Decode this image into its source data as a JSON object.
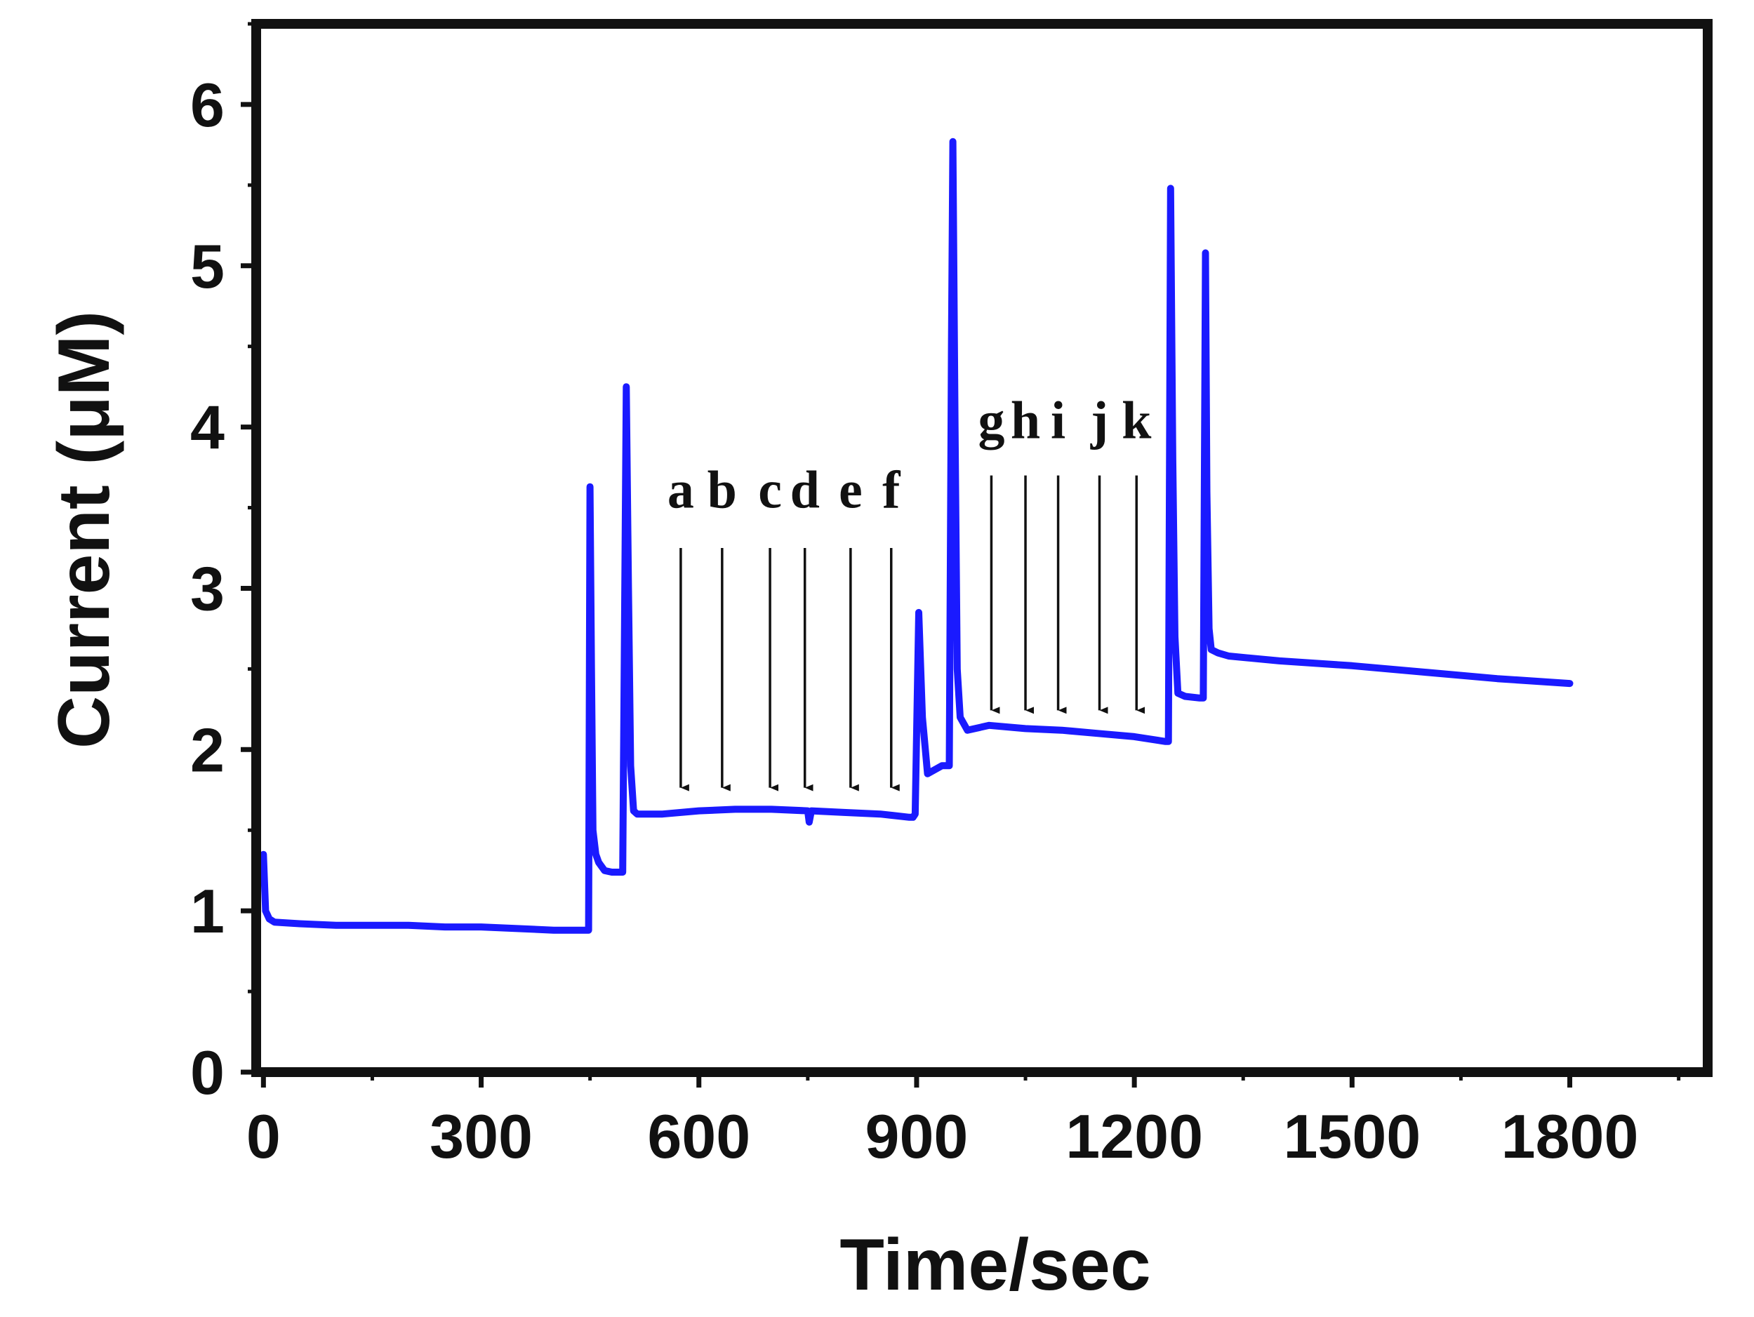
{
  "chart_data": {
    "type": "line",
    "title": "",
    "xlabel": "Time/sec",
    "ylabel": "Current (μM)",
    "xlim": [
      -10,
      1990
    ],
    "ylim": [
      0,
      6.5
    ],
    "x_ticks": [
      "0",
      "300",
      "600",
      "900",
      "1200",
      "1500",
      "1800"
    ],
    "x_tick_values": [
      0,
      300,
      600,
      900,
      1200,
      1500,
      1800
    ],
    "y_ticks": [
      "0",
      "1",
      "2",
      "3",
      "4",
      "5",
      "6"
    ],
    "y_tick_values": [
      0,
      1,
      2,
      3,
      4,
      5,
      6
    ],
    "grid": false,
    "legend": "none",
    "series_color": "#1a1aff",
    "series": [
      {
        "x": [
          0,
          3,
          8,
          15,
          50,
          100,
          150,
          200,
          250,
          300,
          350,
          400,
          448,
          450,
          452,
          454,
          458,
          462,
          470,
          480,
          495,
          500,
          503,
          506,
          510,
          515,
          530,
          550,
          600,
          650,
          700,
          750,
          752,
          755,
          800,
          850,
          890,
          895,
          898,
          903,
          908,
          915,
          935,
          945,
          948,
          950,
          953,
          956,
          960,
          970,
          1000,
          1050,
          1100,
          1150,
          1200,
          1243,
          1247,
          1250,
          1253,
          1256,
          1260,
          1270,
          1290,
          1295,
          1298,
          1300,
          1303,
          1306,
          1315,
          1330,
          1400,
          1500,
          1600,
          1700,
          1800
        ],
        "y": [
          1.35,
          1.0,
          0.95,
          0.93,
          0.92,
          0.91,
          0.91,
          0.91,
          0.9,
          0.9,
          0.89,
          0.88,
          0.88,
          3.63,
          2.5,
          1.5,
          1.35,
          1.3,
          1.25,
          1.24,
          1.24,
          4.25,
          3.0,
          1.9,
          1.62,
          1.6,
          1.6,
          1.6,
          1.62,
          1.63,
          1.63,
          1.62,
          1.55,
          1.62,
          1.61,
          1.6,
          1.58,
          1.58,
          1.6,
          2.85,
          2.2,
          1.85,
          1.9,
          1.9,
          4.5,
          5.77,
          4.0,
          2.5,
          2.2,
          2.12,
          2.15,
          2.13,
          2.12,
          2.1,
          2.08,
          2.05,
          2.05,
          5.48,
          3.8,
          2.7,
          2.35,
          2.33,
          2.32,
          2.32,
          5.08,
          3.6,
          2.75,
          2.62,
          2.6,
          2.58,
          2.55,
          2.52,
          2.48,
          2.44,
          2.41
        ]
      }
    ],
    "annotations": [
      {
        "label": "a",
        "x": 575,
        "y_label": 3.5,
        "y_from": 3.25,
        "y_to": 1.72
      },
      {
        "label": "b",
        "x": 632,
        "y_label": 3.5,
        "y_from": 3.25,
        "y_to": 1.72
      },
      {
        "label": "c",
        "x": 698,
        "y_label": 3.5,
        "y_from": 3.25,
        "y_to": 1.72
      },
      {
        "label": "d",
        "x": 746,
        "y_label": 3.5,
        "y_from": 3.25,
        "y_to": 1.72
      },
      {
        "label": "e",
        "x": 809,
        "y_label": 3.5,
        "y_from": 3.25,
        "y_to": 1.72
      },
      {
        "label": "f",
        "x": 865,
        "y_label": 3.5,
        "y_from": 3.25,
        "y_to": 1.72
      },
      {
        "label": "g",
        "x": 1003,
        "y_label": 3.93,
        "y_from": 3.7,
        "y_to": 2.2
      },
      {
        "label": "h",
        "x": 1050,
        "y_label": 3.93,
        "y_from": 3.7,
        "y_to": 2.2
      },
      {
        "label": "i",
        "x": 1095,
        "y_label": 3.93,
        "y_from": 3.7,
        "y_to": 2.2
      },
      {
        "label": "j",
        "x": 1152,
        "y_label": 3.93,
        "y_from": 3.7,
        "y_to": 2.2
      },
      {
        "label": "k",
        "x": 1203,
        "y_label": 3.93,
        "y_from": 3.7,
        "y_to": 2.2
      }
    ]
  }
}
